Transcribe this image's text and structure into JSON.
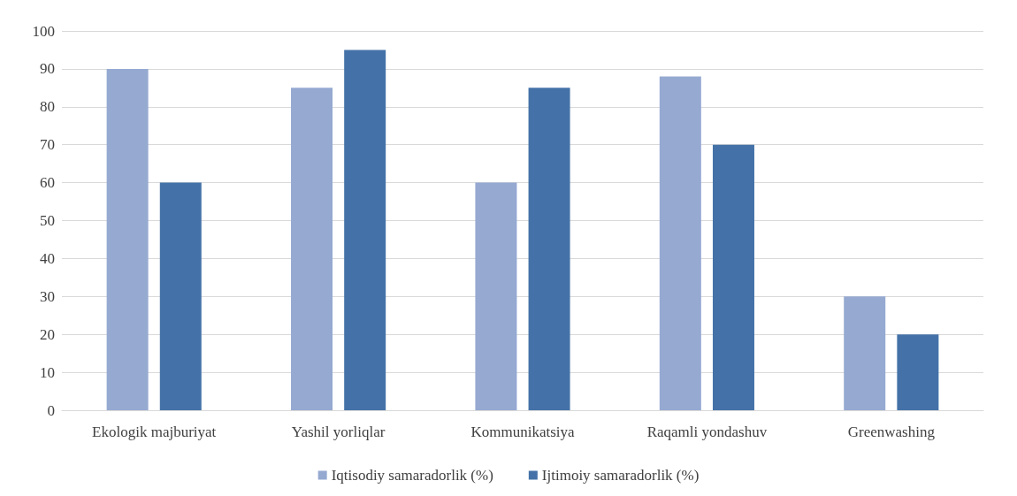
{
  "chart_data": {
    "type": "bar",
    "categories": [
      "Ekologik majburiyat",
      "Yashil yorliqlar",
      "Kommunikatsiya",
      "Raqamli yondashuv",
      "Greenwashing"
    ],
    "series": [
      {
        "name": "Iqtisodiy samaradorlik (%)",
        "color": "#95a9d1",
        "values": [
          90,
          85,
          60,
          88,
          30
        ]
      },
      {
        "name": "Ijtimoiy samaradorlik (%)",
        "color": "#4472a8",
        "values": [
          60,
          95,
          85,
          70,
          20
        ]
      }
    ],
    "ylim": [
      0,
      100
    ],
    "yticks": [
      0,
      10,
      20,
      30,
      40,
      50,
      60,
      70,
      80,
      90,
      100
    ],
    "grid": "y",
    "legend": "bottom"
  }
}
